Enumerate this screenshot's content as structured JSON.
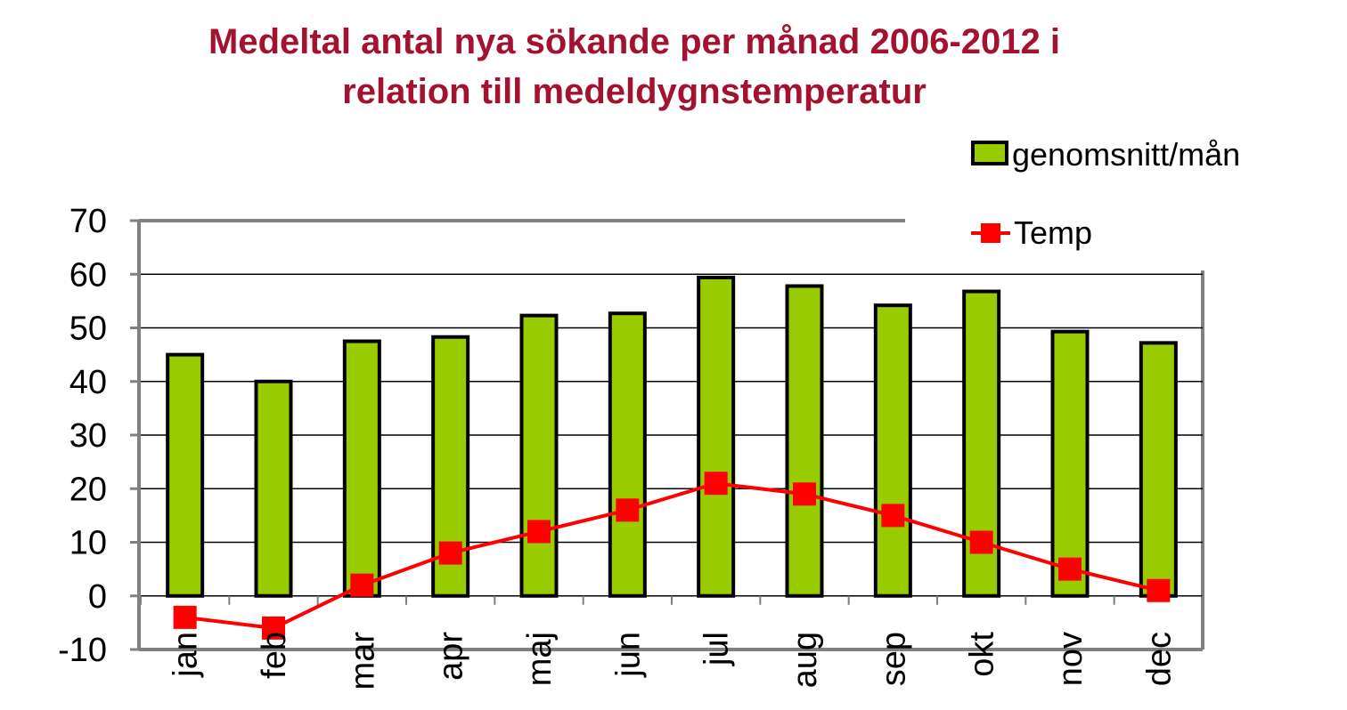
{
  "chart_data": {
    "type": "bar",
    "title_lines": [
      "Medeltal antal nya sökande per månad 2006-2012 i",
      "relation till medeldygnstemperatur"
    ],
    "categories": [
      "jan",
      "feb",
      "mar",
      "apr",
      "maj",
      "jun",
      "jul",
      "aug",
      "sep",
      "okt",
      "nov",
      "dec"
    ],
    "series": [
      {
        "name": "genomsnitt/mån",
        "type": "bar",
        "color": "#99CC00",
        "values": [
          45,
          40,
          47.5,
          48.3,
          52.3,
          52.7,
          59.4,
          57.8,
          54.2,
          56.8,
          49.3,
          47.2
        ]
      },
      {
        "name": "Temp",
        "type": "line",
        "color": "#FF0000",
        "values": [
          -4,
          -6,
          2,
          8,
          12,
          16,
          21,
          19,
          15,
          10,
          5,
          1
        ]
      }
    ],
    "ylim": [
      -10,
      70
    ],
    "yticks": [
      "70",
      "60",
      "50",
      "40",
      "30",
      "20",
      "10",
      "0",
      "-10"
    ],
    "grid": true,
    "legend_position": "top-right"
  }
}
